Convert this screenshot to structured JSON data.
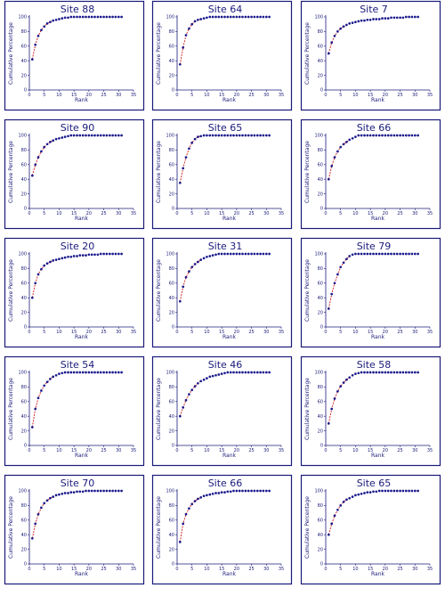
{
  "chart_data": [
    {
      "type": "line",
      "title": "Site 88",
      "xlabel": "Rank",
      "ylabel": "Cumulative Percentage",
      "xlim": [
        0,
        35
      ],
      "ylim": [
        0,
        100
      ],
      "xticks": [
        "0",
        "5",
        "10",
        "15",
        "20",
        "25",
        "30",
        "35"
      ],
      "yticks": [
        "0",
        "20",
        "40",
        "60",
        "80",
        "100"
      ],
      "x": [
        1,
        2,
        3,
        4,
        5,
        6,
        7,
        8,
        9,
        10,
        11,
        12,
        13,
        14,
        15,
        16,
        17,
        18,
        19,
        20,
        21,
        22,
        23,
        24,
        25,
        26,
        27,
        28,
        29,
        30,
        31
      ],
      "values": [
        42,
        62,
        74,
        82,
        87,
        91,
        93,
        95,
        96,
        97,
        98,
        99,
        99,
        100,
        100,
        100,
        100,
        100,
        100,
        100,
        100,
        100,
        100,
        100,
        100,
        100,
        100,
        100,
        100,
        100,
        100
      ]
    },
    {
      "type": "line",
      "title": "Site 64",
      "xlabel": "Rank",
      "ylabel": "Cumulative Percentage",
      "xlim": [
        0,
        35
      ],
      "ylim": [
        0,
        100
      ],
      "xticks": [
        "0",
        "5",
        "10",
        "15",
        "20",
        "25",
        "30",
        "35"
      ],
      "yticks": [
        "0",
        "20",
        "40",
        "60",
        "80",
        "100"
      ],
      "x": [
        1,
        2,
        3,
        4,
        5,
        6,
        7,
        8,
        9,
        10,
        11,
        12,
        13,
        14,
        15,
        16,
        17,
        18,
        19,
        20,
        21,
        22,
        23,
        24,
        25,
        26,
        27,
        28,
        29,
        30,
        31
      ],
      "values": [
        35,
        58,
        75,
        84,
        90,
        94,
        96,
        97,
        98,
        99,
        100,
        100,
        100,
        100,
        100,
        100,
        100,
        100,
        100,
        100,
        100,
        100,
        100,
        100,
        100,
        100,
        100,
        100,
        100,
        100,
        100
      ]
    },
    {
      "type": "line",
      "title": "Site 7",
      "xlabel": "Rank",
      "ylabel": "Cumulative Percentage",
      "xlim": [
        0,
        35
      ],
      "ylim": [
        0,
        100
      ],
      "xticks": [
        "0",
        "5",
        "10",
        "15",
        "20",
        "25",
        "30",
        "35"
      ],
      "yticks": [
        "0",
        "20",
        "40",
        "60",
        "80",
        "100"
      ],
      "x": [
        1,
        2,
        3,
        4,
        5,
        6,
        7,
        8,
        9,
        10,
        11,
        12,
        13,
        14,
        15,
        16,
        17,
        18,
        19,
        20,
        21,
        22,
        23,
        24,
        25,
        26,
        27,
        28,
        29,
        30,
        31
      ],
      "values": [
        50,
        65,
        74,
        80,
        84,
        87,
        89,
        91,
        92,
        93,
        94,
        95,
        95,
        96,
        96,
        97,
        97,
        97,
        98,
        98,
        98,
        99,
        99,
        99,
        99,
        99,
        100,
        100,
        100,
        100,
        100
      ]
    },
    {
      "type": "line",
      "title": "Site 90",
      "xlabel": "Rank",
      "ylabel": "Cumulative Percentage",
      "xlim": [
        0,
        35
      ],
      "ylim": [
        0,
        100
      ],
      "xticks": [
        "0",
        "5",
        "10",
        "15",
        "20",
        "25",
        "30",
        "35"
      ],
      "yticks": [
        "0",
        "20",
        "40",
        "60",
        "80",
        "100"
      ],
      "x": [
        1,
        2,
        3,
        4,
        5,
        6,
        7,
        8,
        9,
        10,
        11,
        12,
        13,
        14,
        15,
        16,
        17,
        18,
        19,
        20,
        21,
        22,
        23,
        24,
        25,
        26,
        27,
        28,
        29,
        30,
        31
      ],
      "values": [
        45,
        60,
        70,
        78,
        84,
        88,
        91,
        93,
        95,
        96,
        97,
        98,
        99,
        100,
        100,
        100,
        100,
        100,
        100,
        100,
        100,
        100,
        100,
        100,
        100,
        100,
        100,
        100,
        100,
        100,
        100
      ]
    },
    {
      "type": "line",
      "title": "Site 65",
      "xlabel": "Rank",
      "ylabel": "Cumulative Percentage",
      "xlim": [
        0,
        35
      ],
      "ylim": [
        0,
        100
      ],
      "xticks": [
        "0",
        "5",
        "10",
        "15",
        "20",
        "25",
        "30",
        "35"
      ],
      "yticks": [
        "0",
        "20",
        "40",
        "60",
        "80",
        "100"
      ],
      "x": [
        1,
        2,
        3,
        4,
        5,
        6,
        7,
        8,
        9,
        10,
        11,
        12,
        13,
        14,
        15,
        16,
        17,
        18,
        19,
        20,
        21,
        22,
        23,
        24,
        25,
        26,
        27,
        28,
        29,
        30,
        31
      ],
      "values": [
        35,
        55,
        70,
        82,
        90,
        95,
        98,
        99,
        100,
        100,
        100,
        100,
        100,
        100,
        100,
        100,
        100,
        100,
        100,
        100,
        100,
        100,
        100,
        100,
        100,
        100,
        100,
        100,
        100,
        100,
        100
      ]
    },
    {
      "type": "line",
      "title": "Site 66",
      "xlabel": "Rank",
      "ylabel": "Cumulative Percentage",
      "xlim": [
        0,
        35
      ],
      "ylim": [
        0,
        100
      ],
      "xticks": [
        "0",
        "5",
        "10",
        "15",
        "20",
        "25",
        "30",
        "35"
      ],
      "yticks": [
        "0",
        "20",
        "40",
        "60",
        "80",
        "100"
      ],
      "x": [
        1,
        2,
        3,
        4,
        5,
        6,
        7,
        8,
        9,
        10,
        11,
        12,
        13,
        14,
        15,
        16,
        17,
        18,
        19,
        20,
        21,
        22,
        23,
        24,
        25,
        26,
        27,
        28,
        29,
        30,
        31
      ],
      "values": [
        40,
        58,
        70,
        78,
        84,
        88,
        91,
        94,
        96,
        98,
        100,
        100,
        100,
        100,
        100,
        100,
        100,
        100,
        100,
        100,
        100,
        100,
        100,
        100,
        100,
        100,
        100,
        100,
        100,
        100,
        100
      ]
    },
    {
      "type": "line",
      "title": "Site 20",
      "xlabel": "Rank",
      "ylabel": "Cumulative Percentage",
      "xlim": [
        0,
        35
      ],
      "ylim": [
        0,
        100
      ],
      "xticks": [
        "0",
        "5",
        "10",
        "15",
        "20",
        "25",
        "30",
        "35"
      ],
      "yticks": [
        "0",
        "20",
        "40",
        "60",
        "80",
        "100"
      ],
      "x": [
        1,
        2,
        3,
        4,
        5,
        6,
        7,
        8,
        9,
        10,
        11,
        12,
        13,
        14,
        15,
        16,
        17,
        18,
        19,
        20,
        21,
        22,
        23,
        24,
        25,
        26,
        27,
        28,
        29,
        30,
        31
      ],
      "values": [
        40,
        60,
        72,
        79,
        84,
        87,
        89,
        91,
        92,
        93,
        94,
        95,
        96,
        96,
        97,
        97,
        98,
        98,
        98,
        99,
        99,
        99,
        99,
        100,
        100,
        100,
        100,
        100,
        100,
        100,
        100
      ]
    },
    {
      "type": "line",
      "title": "Site 31",
      "xlabel": "Rank",
      "ylabel": "Cumulative Percentage",
      "xlim": [
        0,
        35
      ],
      "ylim": [
        0,
        100
      ],
      "xticks": [
        "0",
        "5",
        "10",
        "15",
        "20",
        "25",
        "30",
        "35"
      ],
      "yticks": [
        "0",
        "20",
        "40",
        "60",
        "80",
        "100"
      ],
      "x": [
        1,
        2,
        3,
        4,
        5,
        6,
        7,
        8,
        9,
        10,
        11,
        12,
        13,
        14,
        15,
        16,
        17,
        18,
        19,
        20,
        21,
        22,
        23,
        24,
        25,
        26,
        27,
        28,
        29,
        30,
        31
      ],
      "values": [
        35,
        55,
        68,
        76,
        82,
        86,
        89,
        92,
        94,
        96,
        97,
        98,
        99,
        100,
        100,
        100,
        100,
        100,
        100,
        100,
        100,
        100,
        100,
        100,
        100,
        100,
        100,
        100,
        100,
        100,
        100
      ]
    },
    {
      "type": "line",
      "title": "Site 79",
      "xlabel": "Rank",
      "ylabel": "Cumulative Percentage",
      "xlim": [
        0,
        35
      ],
      "ylim": [
        0,
        100
      ],
      "xticks": [
        "0",
        "5",
        "10",
        "15",
        "20",
        "25",
        "30",
        "35"
      ],
      "yticks": [
        "0",
        "20",
        "40",
        "60",
        "80",
        "100"
      ],
      "x": [
        1,
        2,
        3,
        4,
        5,
        6,
        7,
        8,
        9,
        10,
        11,
        12,
        13,
        14,
        15,
        16,
        17,
        18,
        19,
        20,
        21,
        22,
        23,
        24,
        25,
        26,
        27,
        28,
        29,
        30,
        31
      ],
      "values": [
        25,
        45,
        60,
        72,
        82,
        88,
        93,
        97,
        99,
        100,
        100,
        100,
        100,
        100,
        100,
        100,
        100,
        100,
        100,
        100,
        100,
        100,
        100,
        100,
        100,
        100,
        100,
        100,
        100,
        100,
        100
      ]
    },
    {
      "type": "line",
      "title": "Site 54",
      "xlabel": "Rank",
      "ylabel": "Cumulative Percentage",
      "xlim": [
        0,
        35
      ],
      "ylim": [
        0,
        100
      ],
      "xticks": [
        "0",
        "5",
        "10",
        "15",
        "20",
        "25",
        "30",
        "35"
      ],
      "yticks": [
        "0",
        "20",
        "40",
        "60",
        "80",
        "100"
      ],
      "x": [
        1,
        2,
        3,
        4,
        5,
        6,
        7,
        8,
        9,
        10,
        11,
        12,
        13,
        14,
        15,
        16,
        17,
        18,
        19,
        20,
        21,
        22,
        23,
        24,
        25,
        26,
        27,
        28,
        29,
        30,
        31
      ],
      "values": [
        25,
        50,
        65,
        75,
        82,
        87,
        91,
        94,
        96,
        98,
        99,
        100,
        100,
        100,
        100,
        100,
        100,
        100,
        100,
        100,
        100,
        100,
        100,
        100,
        100,
        100,
        100,
        100,
        100,
        100,
        100
      ]
    },
    {
      "type": "line",
      "title": "Site 46",
      "xlabel": "Rank",
      "ylabel": "Cumulative Percentage",
      "xlim": [
        0,
        35
      ],
      "ylim": [
        0,
        100
      ],
      "xticks": [
        "0",
        "5",
        "10",
        "15",
        "20",
        "25",
        "30",
        "35"
      ],
      "yticks": [
        "0",
        "20",
        "40",
        "60",
        "80",
        "100"
      ],
      "x": [
        1,
        2,
        3,
        4,
        5,
        6,
        7,
        8,
        9,
        10,
        11,
        12,
        13,
        14,
        15,
        16,
        17,
        18,
        19,
        20,
        21,
        22,
        23,
        24,
        25,
        26,
        27,
        28,
        29,
        30,
        31
      ],
      "values": [
        40,
        52,
        62,
        70,
        76,
        81,
        85,
        88,
        90,
        92,
        94,
        95,
        96,
        97,
        98,
        99,
        100,
        100,
        100,
        100,
        100,
        100,
        100,
        100,
        100,
        100,
        100,
        100,
        100,
        100,
        100
      ]
    },
    {
      "type": "line",
      "title": "Site 58",
      "xlabel": "Rank",
      "ylabel": "Cumulative Percentage",
      "xlim": [
        0,
        35
      ],
      "ylim": [
        0,
        100
      ],
      "xticks": [
        "0",
        "5",
        "10",
        "15",
        "20",
        "25",
        "30",
        "35"
      ],
      "yticks": [
        "0",
        "20",
        "40",
        "60",
        "80",
        "100"
      ],
      "x": [
        1,
        2,
        3,
        4,
        5,
        6,
        7,
        8,
        9,
        10,
        11,
        12,
        13,
        14,
        15,
        16,
        17,
        18,
        19,
        20,
        21,
        22,
        23,
        24,
        25,
        26,
        27,
        28,
        29,
        30,
        31
      ],
      "values": [
        30,
        50,
        64,
        74,
        81,
        86,
        90,
        93,
        96,
        98,
        99,
        100,
        100,
        100,
        100,
        100,
        100,
        100,
        100,
        100,
        100,
        100,
        100,
        100,
        100,
        100,
        100,
        100,
        100,
        100,
        100
      ]
    },
    {
      "type": "line",
      "title": "Site 70",
      "xlabel": "Rank",
      "ylabel": "Cumulative Percentage",
      "xlim": [
        0,
        35
      ],
      "ylim": [
        0,
        100
      ],
      "xticks": [
        "0",
        "5",
        "10",
        "15",
        "20",
        "25",
        "30",
        "35"
      ],
      "yticks": [
        "0",
        "20",
        "40",
        "60",
        "80",
        "100"
      ],
      "x": [
        1,
        2,
        3,
        4,
        5,
        6,
        7,
        8,
        9,
        10,
        11,
        12,
        13,
        14,
        15,
        16,
        17,
        18,
        19,
        20,
        21,
        22,
        23,
        24,
        25,
        26,
        27,
        28,
        29,
        30,
        31
      ],
      "values": [
        35,
        55,
        68,
        77,
        83,
        87,
        90,
        92,
        94,
        95,
        96,
        97,
        97,
        98,
        98,
        99,
        99,
        99,
        100,
        100,
        100,
        100,
        100,
        100,
        100,
        100,
        100,
        100,
        100,
        100,
        100
      ]
    },
    {
      "type": "line",
      "title": "Site 66",
      "xlabel": "Rank",
      "ylabel": "Cumulative Percentage",
      "xlim": [
        0,
        35
      ],
      "ylim": [
        0,
        100
      ],
      "xticks": [
        "0",
        "5",
        "10",
        "15",
        "20",
        "25",
        "30",
        "35"
      ],
      "yticks": [
        "0",
        "20",
        "40",
        "60",
        "80",
        "100"
      ],
      "x": [
        1,
        2,
        3,
        4,
        5,
        6,
        7,
        8,
        9,
        10,
        11,
        12,
        13,
        14,
        15,
        16,
        17,
        18,
        19,
        20,
        21,
        22,
        23,
        24,
        25,
        26,
        27,
        28,
        29,
        30,
        31
      ],
      "values": [
        30,
        55,
        68,
        76,
        82,
        86,
        89,
        91,
        93,
        94,
        95,
        96,
        97,
        97,
        98,
        98,
        99,
        99,
        100,
        100,
        100,
        100,
        100,
        100,
        100,
        100,
        100,
        100,
        100,
        100,
        100
      ]
    },
    {
      "type": "line",
      "title": "Site 65",
      "xlabel": "Rank",
      "ylabel": "Cumulative Percentage",
      "xlim": [
        0,
        35
      ],
      "ylim": [
        0,
        100
      ],
      "xticks": [
        "0",
        "5",
        "10",
        "15",
        "20",
        "25",
        "30",
        "35"
      ],
      "yticks": [
        "0",
        "20",
        "40",
        "60",
        "80",
        "100"
      ],
      "x": [
        1,
        2,
        3,
        4,
        5,
        6,
        7,
        8,
        9,
        10,
        11,
        12,
        13,
        14,
        15,
        16,
        17,
        18,
        19,
        20,
        21,
        22,
        23,
        24,
        25,
        26,
        27,
        28,
        29,
        30,
        31
      ],
      "values": [
        40,
        55,
        66,
        74,
        80,
        85,
        88,
        90,
        92,
        94,
        95,
        96,
        97,
        98,
        98,
        99,
        99,
        100,
        100,
        100,
        100,
        100,
        100,
        100,
        100,
        100,
        100,
        100,
        100,
        100,
        100
      ]
    }
  ],
  "colors": {
    "frame": "#1a1a7a",
    "marker": "#1a1a8c",
    "fit_line": "#cc1a1a",
    "axis": "#1a1a7a"
  }
}
